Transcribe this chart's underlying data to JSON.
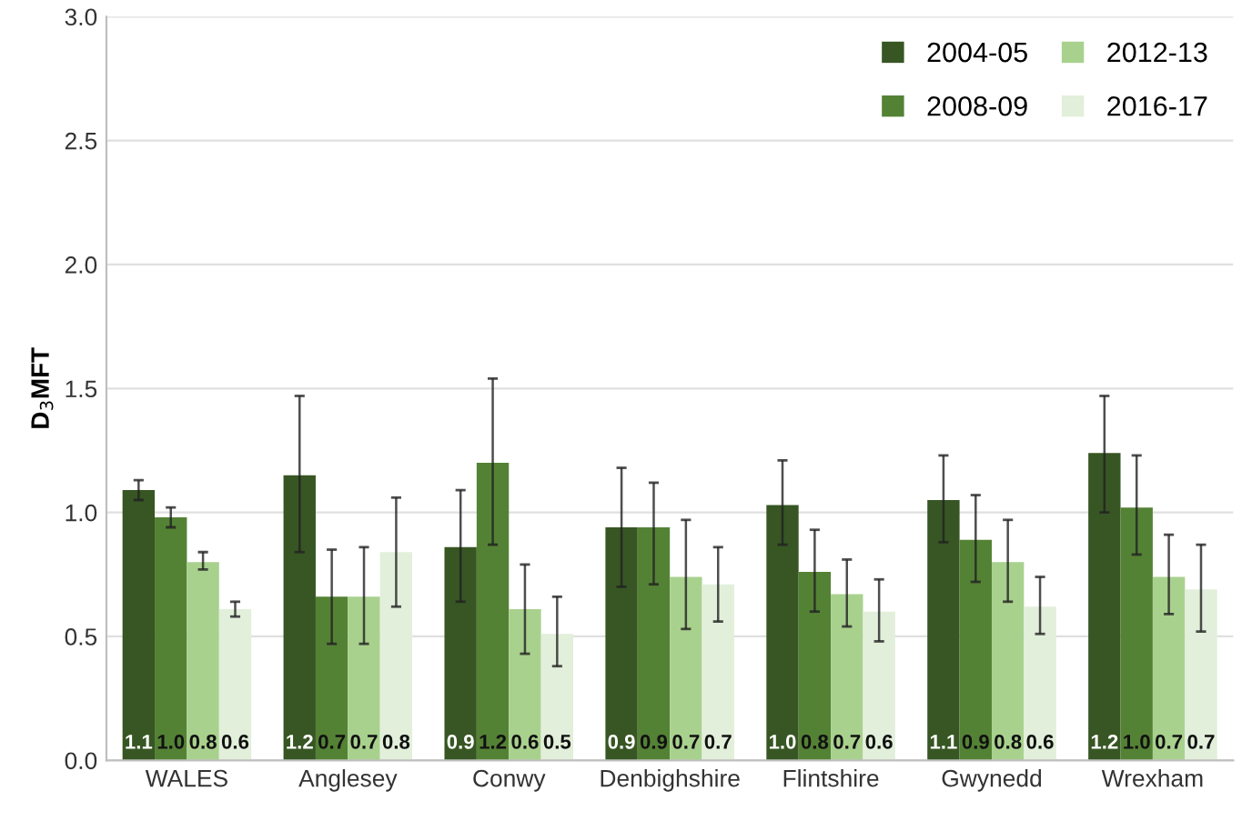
{
  "chart_data": {
    "type": "bar",
    "ylabel": "D$_{3}$MFT",
    "categories": [
      "WALES",
      "Anglesey",
      "Conwy",
      "Denbighshire",
      "Flintshire",
      "Gwynedd",
      "Wrexham"
    ],
    "ylim": [
      0,
      3
    ],
    "yticks": [
      {
        "value": 0,
        "label": "0.0"
      },
      {
        "value": 0.5,
        "label": "0.5"
      },
      {
        "value": 1,
        "label": "1.0"
      },
      {
        "value": 1.5,
        "label": "1.5"
      },
      {
        "value": 2,
        "label": "2.0"
      },
      {
        "value": 2.5,
        "label": "2.5"
      },
      {
        "value": 3,
        "label": "3.0"
      }
    ],
    "grid": "y",
    "legend": "top right",
    "series": [
      {
        "name": "2004-05",
        "color": "#375623",
        "values": [
          1.09,
          1.15,
          0.86,
          0.94,
          1.03,
          1.05,
          1.24
        ],
        "errors": [
          [
            1.05,
            1.13
          ],
          [
            0.84,
            1.47
          ],
          [
            0.64,
            1.09
          ],
          [
            0.7,
            1.18
          ],
          [
            0.87,
            1.21
          ],
          [
            0.88,
            1.23
          ],
          [
            1.0,
            1.47
          ]
        ],
        "value_labels": [
          "1.1",
          "1.2",
          "0.9",
          "0.9",
          "1.0",
          "1.1",
          "1.2"
        ]
      },
      {
        "name": "2008-09",
        "color": "#548235",
        "values": [
          0.98,
          0.66,
          1.2,
          0.94,
          0.76,
          0.89,
          1.02
        ],
        "errors": [
          [
            0.94,
            1.02
          ],
          [
            0.47,
            0.85
          ],
          [
            0.87,
            1.54
          ],
          [
            0.71,
            1.12
          ],
          [
            0.6,
            0.93
          ],
          [
            0.72,
            1.07
          ],
          [
            0.83,
            1.23
          ]
        ],
        "value_labels": [
          "1.0",
          "0.7",
          "1.2",
          "0.9",
          "0.8",
          "0.9",
          "1.0"
        ]
      },
      {
        "name": "2012-13",
        "color": "#a9d18e",
        "values": [
          0.8,
          0.66,
          0.61,
          0.74,
          0.67,
          0.8,
          0.74
        ],
        "errors": [
          [
            0.77,
            0.84
          ],
          [
            0.47,
            0.86
          ],
          [
            0.43,
            0.79
          ],
          [
            0.53,
            0.97
          ],
          [
            0.54,
            0.81
          ],
          [
            0.64,
            0.97
          ],
          [
            0.59,
            0.91
          ]
        ],
        "value_labels": [
          "0.8",
          "0.7",
          "0.6",
          "0.7",
          "0.7",
          "0.8",
          "0.7"
        ]
      },
      {
        "name": "2016-17",
        "color": "#e2efda",
        "values": [
          0.61,
          0.84,
          0.51,
          0.71,
          0.6,
          0.62,
          0.69
        ],
        "errors": [
          [
            0.58,
            0.64
          ],
          [
            0.62,
            1.06
          ],
          [
            0.38,
            0.66
          ],
          [
            0.56,
            0.86
          ],
          [
            0.48,
            0.73
          ],
          [
            0.51,
            0.74
          ],
          [
            0.52,
            0.87
          ]
        ],
        "value_labels": [
          "0.6",
          "0.8",
          "0.5",
          "0.7",
          "0.6",
          "0.6",
          "0.7"
        ]
      }
    ]
  }
}
